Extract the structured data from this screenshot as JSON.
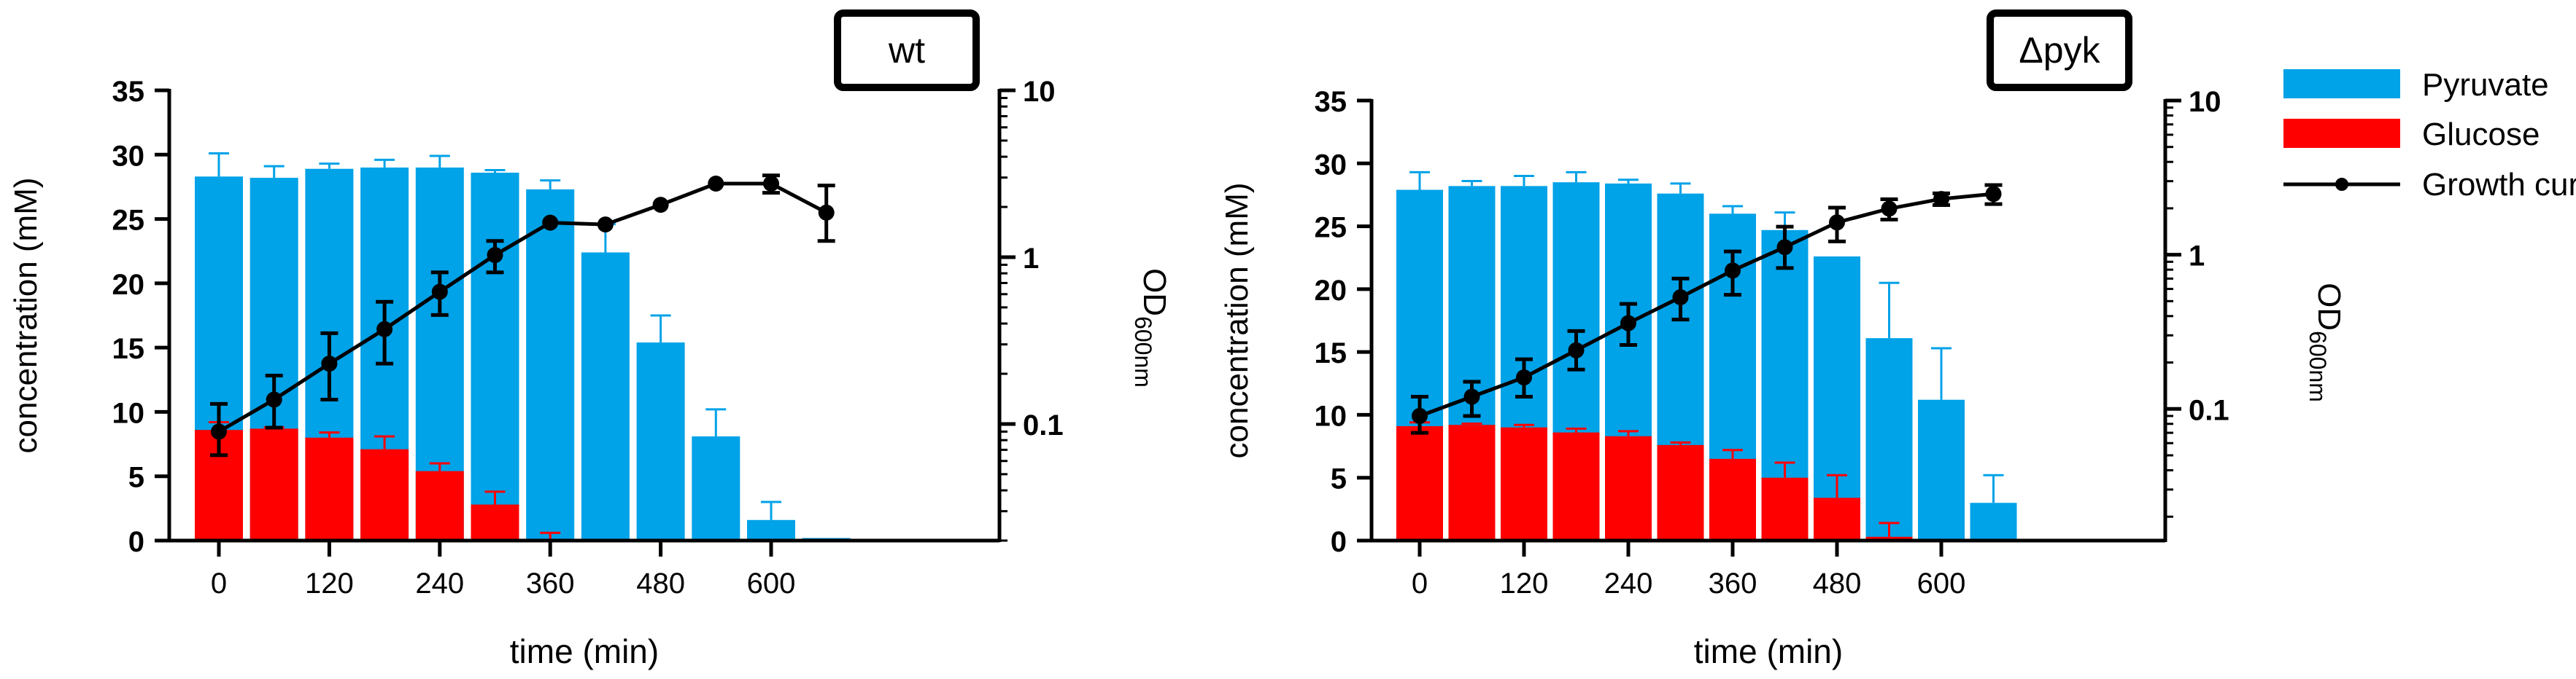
{
  "chart_data": [
    {
      "type": "bar+line",
      "panel_label": "wt",
      "xlabel": "time (min)",
      "ylabel": "concentration (mM)",
      "ylabel_right": "OD",
      "ylabel_right_sub": "600nm",
      "ylim": [
        0,
        35
      ],
      "yticks": [
        "0",
        "5",
        "10",
        "15",
        "20",
        "25",
        "30",
        "35"
      ],
      "yticks_right": [
        "0.1",
        "1",
        "10"
      ],
      "xticks": [
        "0",
        "120",
        "240",
        "360",
        "480",
        "600"
      ],
      "time": [
        0,
        60,
        120,
        180,
        240,
        300,
        360,
        420,
        480,
        540,
        600,
        660
      ],
      "pyruvate": [
        28.3,
        28.2,
        28.9,
        29.0,
        29.0,
        28.6,
        27.3,
        22.4,
        15.4,
        8.1,
        1.6,
        0.2
      ],
      "pyruvate_err": [
        1.8,
        0.9,
        0.4,
        0.6,
        0.9,
        0.2,
        0.7,
        2.2,
        2.1,
        2.1,
        1.4,
        0.0
      ],
      "glucose": [
        8.6,
        8.7,
        8.0,
        7.1,
        5.4,
        2.8,
        0.0,
        0.0,
        0.0,
        0.0,
        0.0,
        0.0
      ],
      "glucose_err": [
        0.6,
        0.1,
        0.4,
        1.0,
        0.6,
        1.0,
        0.6,
        0.0,
        0.0,
        0.0,
        0.0,
        0.0
      ],
      "growth_time": [
        0,
        60,
        120,
        180,
        240,
        300,
        360,
        420,
        480,
        540,
        600,
        660
      ],
      "od600": [
        0.09,
        0.14,
        0.23,
        0.37,
        0.62,
        1.03,
        1.61,
        1.57,
        2.06,
        2.76,
        2.76,
        1.85
      ],
      "od600_err_low": [
        0.025,
        0.045,
        0.09,
        0.14,
        0.17,
        0.22,
        0.0,
        0.0,
        0.0,
        0.0,
        0.33,
        0.6
      ],
      "od600_err_high": [
        0.042,
        0.055,
        0.12,
        0.17,
        0.19,
        0.22,
        0.0,
        0.0,
        0.0,
        0.0,
        0.33,
        0.84
      ]
    },
    {
      "type": "bar+line",
      "panel_label": "Δpyk",
      "xlabel": "time (min)",
      "ylabel": "concentration (mM)",
      "ylabel_right": "OD",
      "ylabel_right_sub": "600nm",
      "ylim": [
        0,
        35
      ],
      "yticks": [
        "0",
        "5",
        "10",
        "15",
        "20",
        "25",
        "30",
        "35"
      ],
      "yticks_right": [
        "0.1",
        "1",
        "10"
      ],
      "xticks": [
        "0",
        "120",
        "240",
        "360",
        "480",
        "600"
      ],
      "time": [
        0,
        60,
        120,
        180,
        240,
        300,
        360,
        420,
        480,
        540,
        600,
        660
      ],
      "pyruvate": [
        27.9,
        28.2,
        28.2,
        28.5,
        28.4,
        27.6,
        26.0,
        24.7,
        22.6,
        16.1,
        11.2,
        3.0
      ],
      "pyruvate_err": [
        1.4,
        0.4,
        0.8,
        0.8,
        0.3,
        0.8,
        0.6,
        1.4,
        0.0,
        4.4,
        4.1,
        2.2
      ],
      "glucose": [
        9.1,
        9.2,
        9.0,
        8.6,
        8.3,
        7.6,
        6.5,
        5.0,
        3.4,
        0.3,
        0.0,
        0.0
      ],
      "glucose_err": [
        0.3,
        0.1,
        0.2,
        0.3,
        0.4,
        0.2,
        0.7,
        1.2,
        1.8,
        1.1,
        0.0,
        0.0
      ],
      "growth_time": [
        0,
        60,
        120,
        180,
        240,
        300,
        360,
        420,
        480,
        540,
        600,
        660
      ],
      "od600": [
        0.09,
        0.12,
        0.16,
        0.24,
        0.36,
        0.53,
        0.79,
        1.12,
        1.62,
        1.99,
        2.3,
        2.48
      ],
      "od600_err_low": [
        0.02,
        0.03,
        0.04,
        0.06,
        0.1,
        0.15,
        0.24,
        0.3,
        0.4,
        0.3,
        0.2,
        0.35
      ],
      "od600_err_high": [
        0.03,
        0.03,
        0.05,
        0.08,
        0.12,
        0.17,
        0.26,
        0.4,
        0.4,
        0.3,
        0.2,
        0.35
      ]
    }
  ],
  "legend": {
    "pyruvate": "Pyruvate",
    "glucose": "Glucose",
    "growth": "Growth curve"
  },
  "colors": {
    "pyruvate": "#00a2e8",
    "glucose": "#ff0000",
    "line": "#000000"
  }
}
